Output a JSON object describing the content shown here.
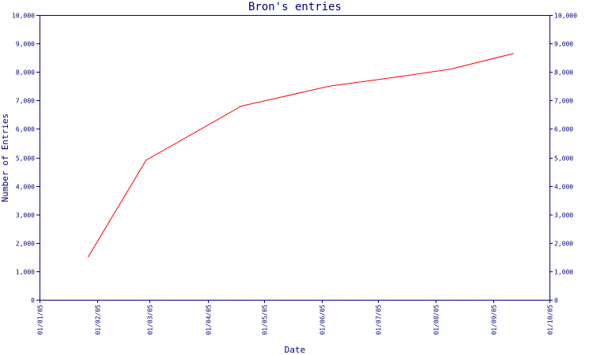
{
  "chart_data": {
    "type": "line",
    "title": "Bron's entries",
    "xlabel": "Date",
    "ylabel": "Number of Entries",
    "x_tick_labels": [
      "01/01/05",
      "01/02/05",
      "01/03/05",
      "01/04/05",
      "01/05/05",
      "01/06/05",
      "01/07/05",
      "01/08/05",
      "01/09/05",
      "01/10/05"
    ],
    "y_tick_labels": [
      "0",
      "1,000",
      "2,000",
      "3,000",
      "4,000",
      "5,000",
      "6,000",
      "7,000",
      "8,000",
      "9,000",
      "10,000"
    ],
    "xlim": [
      "2005-01-01",
      "2005-10-01"
    ],
    "ylim": [
      0,
      10000
    ],
    "grid": false,
    "series": [
      {
        "color": "#ff0000",
        "x": [
          "2005-01-27",
          "2005-02-27",
          "2005-04-19",
          "2005-06-05",
          "2005-07-09",
          "2005-08-09",
          "2005-09-12"
        ],
        "y": [
          1500,
          4900,
          6800,
          7500,
          7800,
          8100,
          8650
        ]
      }
    ]
  }
}
